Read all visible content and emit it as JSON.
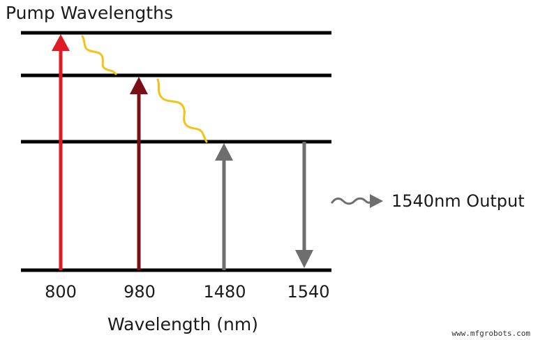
{
  "title": "Pump Wavelengths",
  "x_axis_label": "Wavelength (nm)",
  "wavelength_labels": [
    "800",
    "980",
    "1480",
    "1540"
  ],
  "output_label": "1540nm Output",
  "watermark": "www.mfgrobots.com",
  "colors": {
    "level_line": "#000000",
    "arrow_800": "#e01b24",
    "arrow_980": "#7a1016",
    "arrow_1480": "#6e6e6e",
    "arrow_1540": "#6e6e6e",
    "decay_wave": "#f2c417",
    "output_wave": "#6e6e6e"
  },
  "transitions": [
    {
      "wavelength": "800",
      "direction": "up",
      "from_level": 0,
      "to_level": 3
    },
    {
      "wavelength": "980",
      "direction": "up",
      "from_level": 0,
      "to_level": 2
    },
    {
      "wavelength": "1480",
      "direction": "up",
      "from_level": 0,
      "to_level": 1
    },
    {
      "wavelength": "1540",
      "direction": "down",
      "from_level": 1,
      "to_level": 0
    }
  ],
  "nonradiative_decays": [
    {
      "from_level": 3,
      "to_level": 2
    },
    {
      "from_level": 2,
      "to_level": 1
    }
  ]
}
